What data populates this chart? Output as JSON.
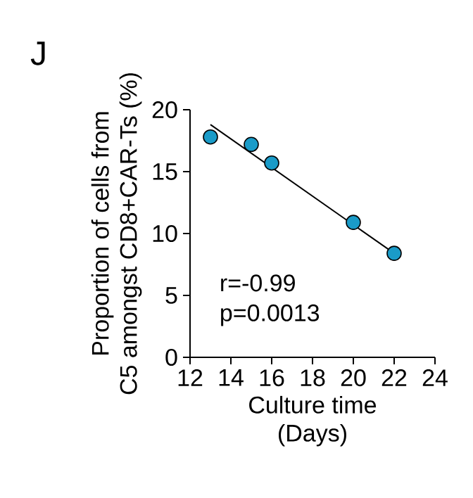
{
  "chart_data": {
    "type": "scatter",
    "title": "J",
    "xlabel": "Culture time\n(Days)",
    "ylabel": "Proportion of cells from\nC5 amongst CD8+CAR-Ts (%)",
    "series": [
      {
        "x": [
          13,
          15,
          16,
          20,
          22
        ],
        "values": [
          17.8,
          17.2,
          15.7,
          10.9,
          8.4
        ],
        "color": "#1a9bc8",
        "marker": "circle"
      },
      {
        "type": "line",
        "x": [
          13,
          22
        ],
        "values": [
          18.8,
          8.4
        ],
        "color": "#000000"
      }
    ],
    "xlim": [
      12,
      24
    ],
    "ylim": [
      0,
      20
    ],
    "xticks": [
      12,
      14,
      16,
      18,
      20,
      22,
      24
    ],
    "yticks": [
      0,
      5,
      10,
      15,
      20
    ],
    "annotations": [
      "r=-0.99",
      "p=0.0013"
    ],
    "grid": false
  }
}
